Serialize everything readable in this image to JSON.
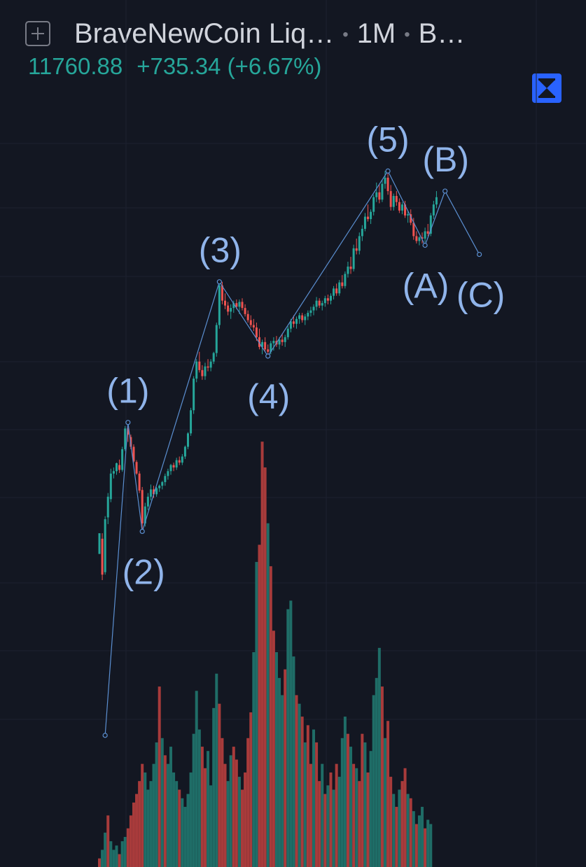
{
  "header": {
    "symbol": "BraveNewCoin Liq…",
    "interval": "1M",
    "exchange": "B…",
    "price": "11760.88",
    "change": "+735.34 (+6.67%)"
  },
  "icons": {
    "add": "add-symbol-icon",
    "collapse": "collapse-icon"
  },
  "colors": {
    "background": "#131722",
    "up": "#26a69a",
    "down": "#ef5350",
    "volume_up": "#1f6d67",
    "volume_down": "#a83b3b",
    "wave_line": "#5b8fd1",
    "wave_label": "#90b4ea",
    "accent": "#2962ff"
  },
  "chart_data": {
    "type": "candlestick",
    "ylim": [
      0,
      1000
    ],
    "grid": true,
    "wave": {
      "points": [
        {
          "label": "",
          "i": 2,
          "y": 22
        },
        {
          "label": "(1)",
          "i": 10,
          "y": 536
        },
        {
          "label": "(2)",
          "i": 15,
          "y": 357
        },
        {
          "label": "(3)",
          "i": 42,
          "y": 767
        },
        {
          "label": "(4)",
          "i": 59,
          "y": 645
        },
        {
          "label": "(5)",
          "i": 101,
          "y": 949
        },
        {
          "label": "(A)",
          "i": 114,
          "y": 827
        },
        {
          "label": "(B)",
          "i": 121,
          "y": 916
        },
        {
          "label": "(C)",
          "i": 133,
          "y": 812
        }
      ]
    },
    "candles": [
      [
        320,
        354,
        320,
        354
      ],
      [
        345,
        354,
        277,
        286
      ],
      [
        290,
        382,
        286,
        377
      ],
      [
        380,
        420,
        369,
        414
      ],
      [
        410,
        460,
        405,
        452
      ],
      [
        452,
        462,
        444,
        456
      ],
      [
        456,
        470,
        450,
        469
      ],
      [
        466,
        475,
        453,
        458
      ],
      [
        458,
        496,
        455,
        492
      ],
      [
        492,
        530,
        489,
        526
      ],
      [
        526,
        536,
        504,
        516
      ],
      [
        512,
        516,
        492,
        496
      ],
      [
        496,
        500,
        470,
        472
      ],
      [
        471,
        474,
        450,
        452
      ],
      [
        452,
        456,
        420,
        424
      ],
      [
        425,
        430,
        360,
        370
      ],
      [
        370,
        404,
        365,
        398
      ],
      [
        398,
        420,
        392,
        414
      ],
      [
        414,
        434,
        408,
        426
      ],
      [
        426,
        432,
        412,
        418
      ],
      [
        418,
        430,
        414,
        428
      ],
      [
        428,
        434,
        422,
        432
      ],
      [
        432,
        440,
        426,
        438
      ],
      [
        438,
        452,
        432,
        448
      ],
      [
        448,
        460,
        442,
        456
      ],
      [
        456,
        468,
        450,
        466
      ],
      [
        466,
        470,
        456,
        462
      ],
      [
        462,
        478,
        458,
        474
      ],
      [
        474,
        480,
        466,
        470
      ],
      [
        470,
        484,
        466,
        480
      ],
      [
        480,
        498,
        476,
        496
      ],
      [
        496,
        520,
        492,
        518
      ],
      [
        518,
        560,
        514,
        556
      ],
      [
        556,
        612,
        550,
        608
      ],
      [
        608,
        640,
        602,
        636
      ],
      [
        636,
        652,
        618,
        622
      ],
      [
        622,
        630,
        606,
        612
      ],
      [
        612,
        634,
        606,
        628
      ],
      [
        628,
        640,
        620,
        626
      ],
      [
        626,
        640,
        620,
        636
      ],
      [
        636,
        652,
        632,
        650
      ],
      [
        650,
        700,
        644,
        696
      ],
      [
        696,
        767,
        690,
        761
      ],
      [
        761,
        767,
        730,
        736
      ],
      [
        736,
        748,
        722,
        728
      ],
      [
        728,
        734,
        712,
        718
      ],
      [
        718,
        730,
        706,
        724
      ],
      [
        724,
        736,
        716,
        732
      ],
      [
        732,
        738,
        722,
        726
      ],
      [
        726,
        738,
        714,
        734
      ],
      [
        734,
        740,
        720,
        724
      ],
      [
        724,
        730,
        710,
        714
      ],
      [
        714,
        720,
        700,
        704
      ],
      [
        704,
        712,
        692,
        696
      ],
      [
        696,
        706,
        686,
        692
      ],
      [
        692,
        700,
        670,
        676
      ],
      [
        676,
        690,
        656,
        660
      ],
      [
        660,
        672,
        648,
        668
      ],
      [
        668,
        676,
        652,
        656
      ],
      [
        656,
        664,
        645,
        652
      ],
      [
        652,
        670,
        648,
        666
      ],
      [
        666,
        676,
        654,
        670
      ],
      [
        670,
        678,
        660,
        664
      ],
      [
        664,
        676,
        656,
        672
      ],
      [
        672,
        682,
        662,
        668
      ],
      [
        668,
        680,
        660,
        676
      ],
      [
        676,
        694,
        672,
        690
      ],
      [
        690,
        706,
        684,
        702
      ],
      [
        702,
        712,
        692,
        698
      ],
      [
        698,
        710,
        690,
        706
      ],
      [
        706,
        716,
        698,
        712
      ],
      [
        712,
        716,
        700,
        704
      ],
      [
        704,
        714,
        696,
        710
      ],
      [
        710,
        720,
        704,
        716
      ],
      [
        716,
        726,
        710,
        720
      ],
      [
        720,
        730,
        712,
        726
      ],
      [
        726,
        742,
        720,
        736
      ],
      [
        736,
        740,
        724,
        728
      ],
      [
        728,
        736,
        720,
        732
      ],
      [
        732,
        744,
        726,
        740
      ],
      [
        740,
        746,
        730,
        736
      ],
      [
        736,
        748,
        730,
        744
      ],
      [
        744,
        760,
        738,
        756
      ],
      [
        756,
        764,
        744,
        748
      ],
      [
        748,
        770,
        744,
        766
      ],
      [
        766,
        778,
        756,
        760
      ],
      [
        760,
        784,
        756,
        780
      ],
      [
        780,
        800,
        774,
        792
      ],
      [
        792,
        808,
        780,
        788
      ],
      [
        788,
        828,
        784,
        822
      ],
      [
        822,
        838,
        812,
        818
      ],
      [
        818,
        848,
        812,
        842
      ],
      [
        842,
        860,
        834,
        854
      ],
      [
        854,
        880,
        850,
        874
      ],
      [
        874,
        894,
        866,
        870
      ],
      [
        870,
        886,
        862,
        882
      ],
      [
        882,
        910,
        876,
        906
      ],
      [
        906,
        930,
        898,
        914
      ],
      [
        914,
        926,
        896,
        902
      ],
      [
        902,
        934,
        898,
        928
      ],
      [
        928,
        949,
        920,
        938
      ],
      [
        938,
        946,
        910,
        916
      ],
      [
        916,
        926,
        884,
        890
      ],
      [
        890,
        912,
        884,
        908
      ],
      [
        908,
        916,
        892,
        898
      ],
      [
        898,
        904,
        880,
        884
      ],
      [
        884,
        898,
        878,
        894
      ],
      [
        894,
        900,
        872,
        876
      ],
      [
        876,
        884,
        864,
        878
      ],
      [
        878,
        886,
        860,
        864
      ],
      [
        864,
        872,
        836,
        842
      ],
      [
        842,
        850,
        830,
        834
      ],
      [
        834,
        842,
        827,
        840
      ],
      [
        840,
        848,
        830,
        838
      ],
      [
        838,
        856,
        832,
        850
      ],
      [
        850,
        862,
        842,
        846
      ],
      [
        846,
        880,
        842,
        876
      ],
      [
        876,
        900,
        870,
        894
      ],
      [
        894,
        916,
        888,
        906
      ]
    ],
    "volume": [
      [
        4,
        0
      ],
      [
        8,
        1
      ],
      [
        16,
        1
      ],
      [
        24,
        0
      ],
      [
        12,
        1
      ],
      [
        8,
        1
      ],
      [
        10,
        1
      ],
      [
        6,
        0
      ],
      [
        12,
        1
      ],
      [
        14,
        1
      ],
      [
        18,
        0
      ],
      [
        24,
        0
      ],
      [
        30,
        0
      ],
      [
        34,
        0
      ],
      [
        40,
        0
      ],
      [
        48,
        0
      ],
      [
        44,
        1
      ],
      [
        36,
        1
      ],
      [
        40,
        1
      ],
      [
        48,
        1
      ],
      [
        58,
        1
      ],
      [
        84,
        0
      ],
      [
        60,
        1
      ],
      [
        52,
        0
      ],
      [
        48,
        1
      ],
      [
        56,
        1
      ],
      [
        44,
        1
      ],
      [
        40,
        1
      ],
      [
        36,
        0
      ],
      [
        32,
        1
      ],
      [
        28,
        1
      ],
      [
        34,
        1
      ],
      [
        44,
        1
      ],
      [
        62,
        1
      ],
      [
        82,
        1
      ],
      [
        64,
        1
      ],
      [
        56,
        0
      ],
      [
        46,
        0
      ],
      [
        54,
        1
      ],
      [
        38,
        1
      ],
      [
        74,
        1
      ],
      [
        90,
        1
      ],
      [
        76,
        0
      ],
      [
        60,
        0
      ],
      [
        48,
        0
      ],
      [
        40,
        1
      ],
      [
        52,
        1
      ],
      [
        56,
        0
      ],
      [
        50,
        0
      ],
      [
        42,
        1
      ],
      [
        36,
        0
      ],
      [
        44,
        0
      ],
      [
        60,
        0
      ],
      [
        72,
        0
      ],
      [
        100,
        1
      ],
      [
        142,
        1
      ],
      [
        150,
        0
      ],
      [
        198,
        0
      ],
      [
        186,
        0
      ],
      [
        160,
        1
      ],
      [
        140,
        0
      ],
      [
        110,
        0
      ],
      [
        100,
        1
      ],
      [
        88,
        1
      ],
      [
        80,
        1
      ],
      [
        92,
        0
      ],
      [
        120,
        1
      ],
      [
        124,
        1
      ],
      [
        98,
        1
      ],
      [
        80,
        0
      ],
      [
        76,
        1
      ],
      [
        70,
        0
      ],
      [
        58,
        1
      ],
      [
        66,
        0
      ],
      [
        48,
        0
      ],
      [
        64,
        1
      ],
      [
        58,
        0
      ],
      [
        40,
        0
      ],
      [
        48,
        1
      ],
      [
        34,
        0
      ],
      [
        38,
        1
      ],
      [
        44,
        0
      ],
      [
        36,
        1
      ],
      [
        48,
        0
      ],
      [
        42,
        1
      ],
      [
        60,
        1
      ],
      [
        70,
        1
      ],
      [
        62,
        0
      ],
      [
        56,
        1
      ],
      [
        48,
        0
      ],
      [
        46,
        1
      ],
      [
        40,
        0
      ],
      [
        62,
        0
      ],
      [
        58,
        1
      ],
      [
        44,
        0
      ],
      [
        54,
        1
      ],
      [
        80,
        1
      ],
      [
        88,
        1
      ],
      [
        102,
        1
      ],
      [
        84,
        0
      ],
      [
        60,
        1
      ],
      [
        68,
        0
      ],
      [
        42,
        0
      ],
      [
        34,
        1
      ],
      [
        28,
        0
      ],
      [
        36,
        1
      ],
      [
        40,
        0
      ],
      [
        46,
        0
      ],
      [
        34,
        1
      ],
      [
        32,
        0
      ],
      [
        26,
        1
      ],
      [
        20,
        0
      ],
      [
        24,
        1
      ],
      [
        28,
        1
      ],
      [
        18,
        0
      ],
      [
        22,
        1
      ],
      [
        20,
        1
      ]
    ]
  }
}
